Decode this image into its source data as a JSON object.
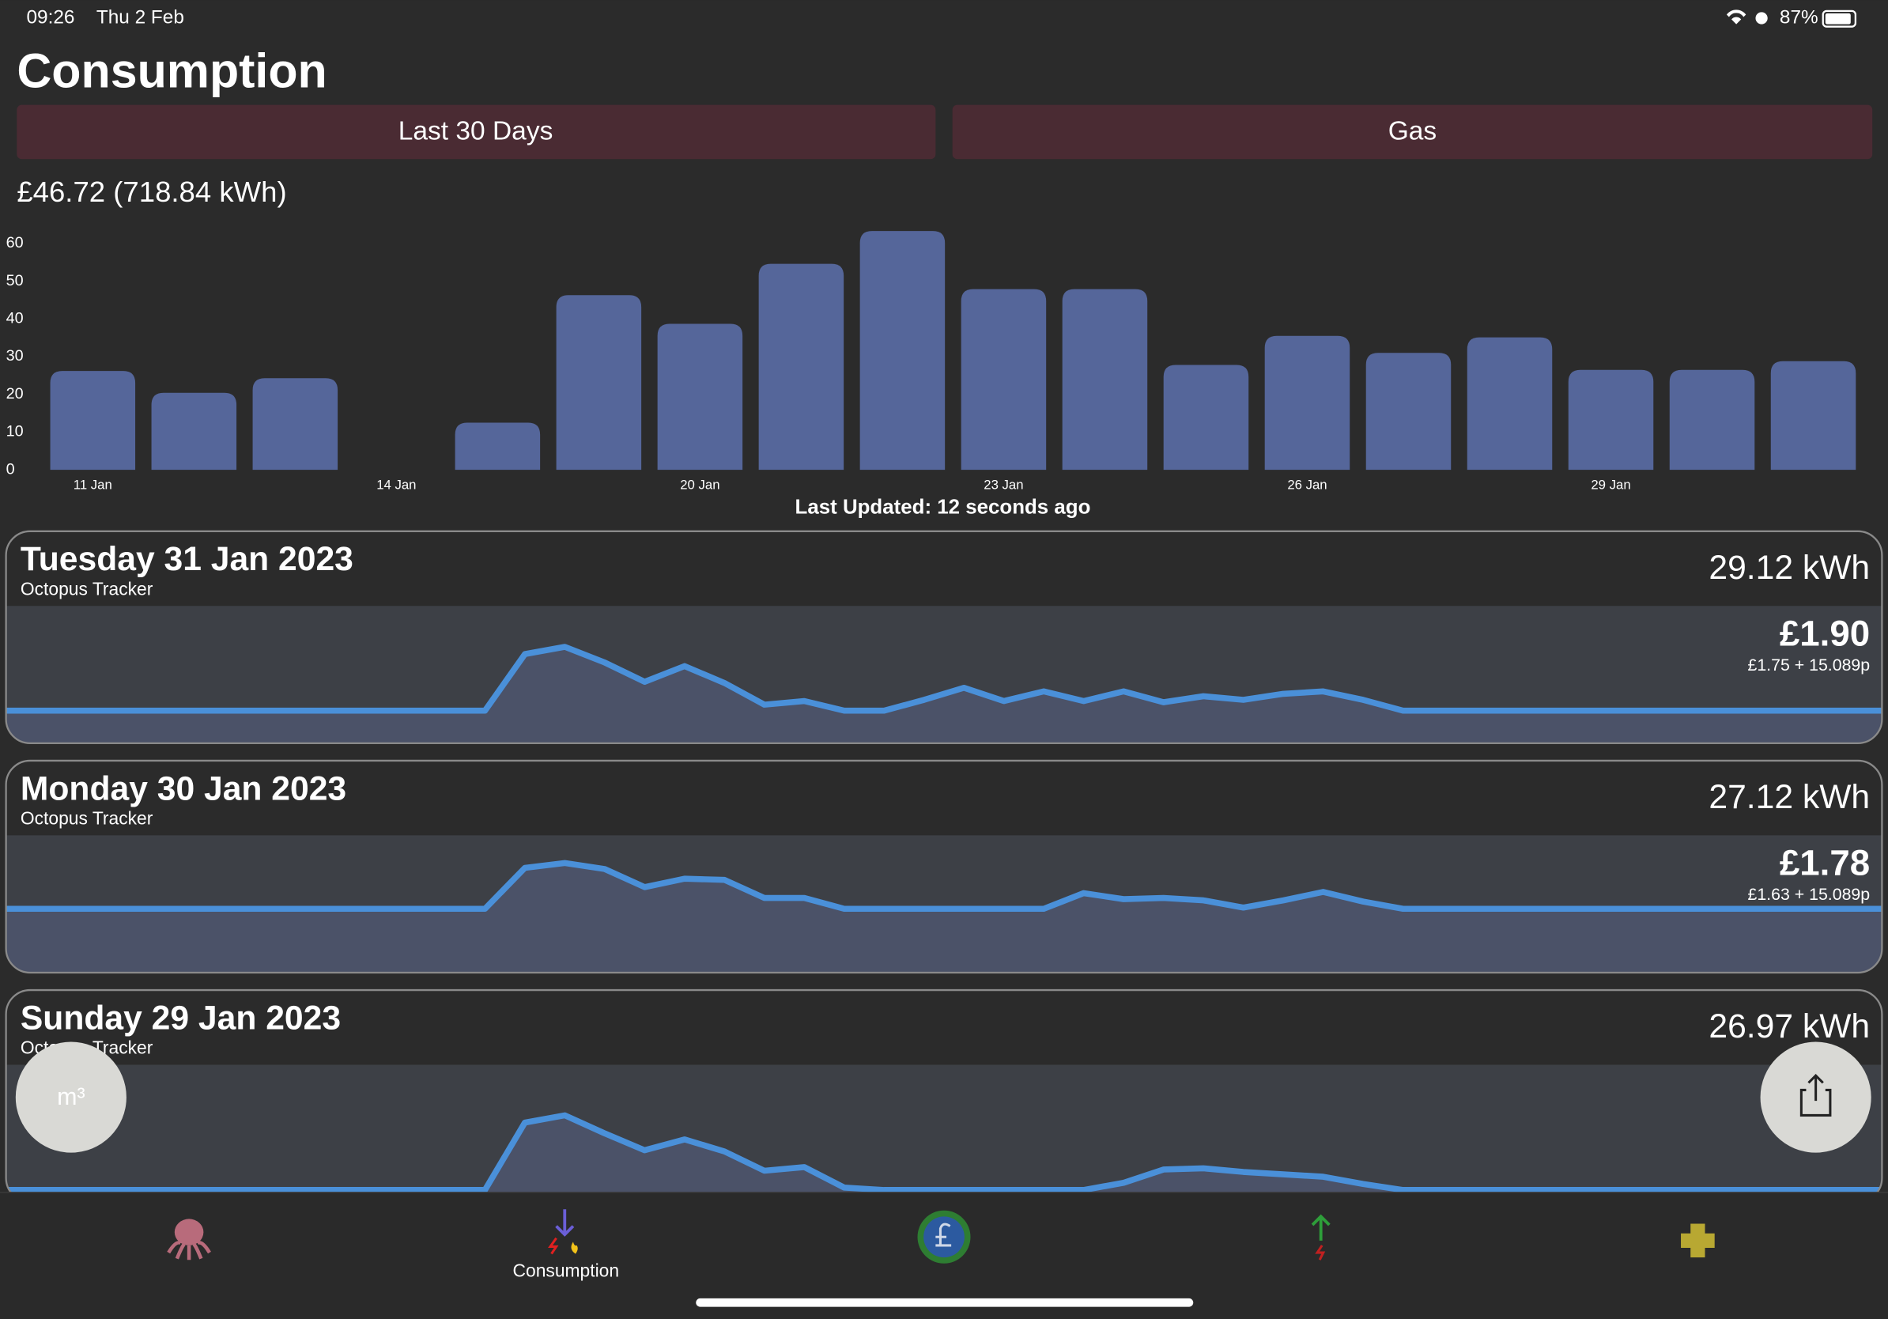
{
  "status_bar": {
    "time": "09:26",
    "date": "Thu 2 Feb",
    "battery": "87%"
  },
  "header": {
    "title": "Consumption"
  },
  "filters": {
    "period": "Last 30 Days",
    "fuel": "Gas"
  },
  "summary": "£46.72 (718.84 kWh)",
  "chart_data": {
    "type": "bar",
    "categories": [
      "11 Jan",
      null,
      null,
      "14 Jan",
      null,
      null,
      "20 Jan",
      null,
      null,
      "23 Jan",
      null,
      null,
      "26 Jan",
      null,
      null,
      "29 Jan",
      null,
      null
    ],
    "values": [
      26.2,
      20.4,
      24.3,
      null,
      12.5,
      46.3,
      38.7,
      54.6,
      63.3,
      47.9,
      47.9,
      27.8,
      35.5,
      31.0,
      35.1,
      26.5,
      26.5,
      28.8
    ],
    "color": "#55669a",
    "ylim": [
      0,
      64
    ],
    "yticks": [
      0,
      10,
      20,
      30,
      40,
      50,
      60
    ],
    "grid": false
  },
  "last_updated": "Last Updated: 12 seconds ago",
  "days": [
    {
      "date": "Tuesday 31 Jan 2023",
      "tariff": "Octopus Tracker",
      "usage": "29.12 kWh",
      "cost": "£1.90",
      "cost_breakdown": "£1.75 + 15.089p",
      "chart": {
        "type": "line",
        "color": "#4a90d9",
        "ylim": [
          0,
          2.28
        ],
        "values": [
          0.54,
          0.54,
          0.54,
          0.54,
          0.54,
          0.54,
          0.54,
          0.54,
          0.54,
          0.54,
          0.54,
          0.54,
          0.54,
          1.48,
          1.6,
          1.34,
          1.02,
          1.28,
          1.0,
          0.64,
          0.7,
          0.54,
          0.54,
          0.72,
          0.92,
          0.7,
          0.86,
          0.7,
          0.86,
          0.68,
          0.78,
          0.72,
          0.82,
          0.86,
          0.72,
          0.54,
          0.54,
          0.54,
          0.54,
          0.54,
          0.54,
          0.54,
          0.54,
          0.54,
          0.54,
          0.54,
          0.54,
          0.54
        ]
      }
    },
    {
      "date": "Monday 30 Jan 2023",
      "tariff": "Octopus Tracker",
      "usage": "27.12 kWh",
      "cost": "£1.78",
      "cost_breakdown": "£1.63 + 15.089p",
      "chart": {
        "type": "line",
        "color": "#4a90d9",
        "ylim": [
          0,
          2.28
        ],
        "values": [
          1.06,
          1.06,
          1.06,
          1.06,
          1.06,
          1.06,
          1.06,
          1.06,
          1.06,
          1.06,
          1.06,
          1.06,
          1.06,
          1.74,
          1.82,
          1.72,
          1.42,
          1.56,
          1.54,
          1.24,
          1.24,
          1.06,
          1.06,
          1.06,
          1.06,
          1.06,
          1.06,
          1.32,
          1.22,
          1.24,
          1.2,
          1.08,
          1.2,
          1.34,
          1.18,
          1.06,
          1.06,
          1.06,
          1.06,
          1.06,
          1.06,
          1.06,
          1.06,
          1.06,
          1.06,
          1.06,
          1.06,
          1.06
        ]
      }
    },
    {
      "date": "Sunday 29 Jan 2023",
      "tariff": "Octopus Tracker",
      "usage": "26.97 kWh",
      "chart": {
        "type": "line",
        "color": "#4a90d9",
        "ylim": [
          0,
          2.28
        ],
        "values": [
          0.2,
          0.2,
          0.2,
          0.2,
          0.2,
          0.2,
          0.2,
          0.2,
          0.2,
          0.2,
          0.2,
          0.2,
          0.2,
          1.32,
          1.44,
          1.14,
          0.86,
          1.04,
          0.84,
          0.52,
          0.58,
          0.24,
          0.2,
          0.2,
          0.2,
          0.2,
          0.2,
          0.2,
          0.32,
          0.54,
          0.56,
          0.5,
          0.46,
          0.42,
          0.3,
          0.2,
          0.2,
          0.2,
          0.2,
          0.2,
          0.2,
          0.2,
          0.2,
          0.2,
          0.2,
          0.2,
          0.2,
          0.2
        ]
      }
    }
  ],
  "unit_button": "m³",
  "tab_bar": {
    "active_tab": "Consumption"
  }
}
